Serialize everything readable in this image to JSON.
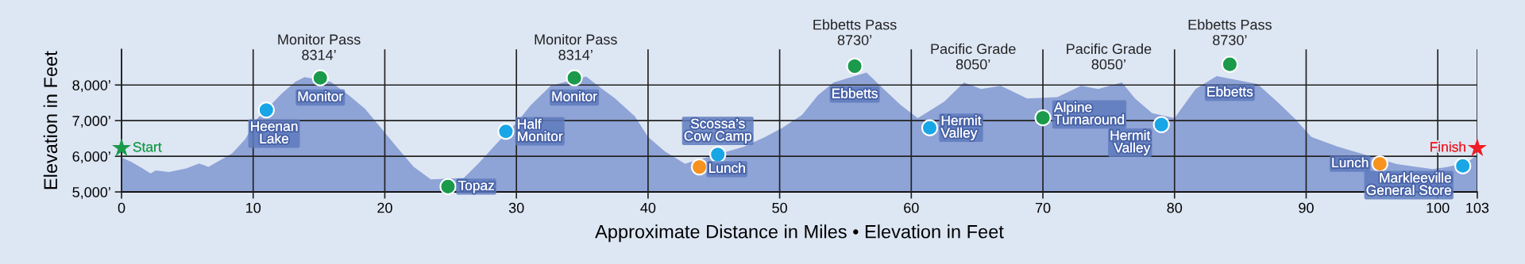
{
  "chart_data": {
    "type": "area",
    "xlabel": "Approximate Distance in Miles • Elevation in Feet",
    "ylabel": "Elevation in Feet",
    "xlim": [
      0,
      103
    ],
    "xticks": [
      0,
      10,
      20,
      30,
      40,
      50,
      60,
      70,
      80,
      90,
      100,
      103
    ],
    "ylim": [
      5000,
      9000
    ],
    "yticks": [
      {
        "value": 5000,
        "label": "5,000’"
      },
      {
        "value": 6000,
        "label": "6,000’"
      },
      {
        "value": 7000,
        "label": "7,000’"
      },
      {
        "value": 8000,
        "label": "8,000’"
      }
    ],
    "grid": true,
    "legend": false,
    "annotations": [
      {
        "text": "Monitor Pass\n8314’",
        "x": 15,
        "y": 8314
      },
      {
        "text": "Monitor Pass\n8314’",
        "x": 34.5,
        "y": 8314
      },
      {
        "text": "Ebbetts Pass\n8730’",
        "x": 55.7,
        "y": 8730
      },
      {
        "text": "Pacific Grade\n8050’",
        "x": 64.7,
        "y": 8050
      },
      {
        "text": "Pacific Grade\n8050’",
        "x": 75,
        "y": 8050
      },
      {
        "text": "Ebbetts Pass\n8730’",
        "x": 84.2,
        "y": 8730
      }
    ],
    "series": [
      {
        "color": "#8ea3d6",
        "x": [
          0,
          0.8,
          1.6,
          2.2,
          2.6,
          3.6,
          4.9,
          5.9,
          6.6,
          7.4,
          8.4,
          9.4,
          10.2,
          12.2,
          13.2,
          13.9,
          15.9,
          17.2,
          18.5,
          19.7,
          21.0,
          22.2,
          23.5,
          26.0,
          27.2,
          28.5,
          30,
          31.1,
          32.6,
          35.3,
          36.2,
          37.5,
          39.0,
          40,
          41.3,
          42.8,
          47.3,
          48.9,
          50.2,
          51.7,
          52.9,
          54.1,
          56.6,
          57.9,
          59.2,
          60.5,
          62.5,
          64.0,
          65.3,
          66.8,
          68.8,
          71.1,
          72.9,
          74.2,
          76.0,
          77.0,
          78.3,
          80,
          81.6,
          83.2,
          86.3,
          87.8,
          89.1,
          90.4,
          92.4,
          94.5,
          96.9,
          99.6,
          100.6,
          102.2,
          103
        ],
        "values": [
          5970,
          5830,
          5660,
          5520,
          5600,
          5560,
          5660,
          5800,
          5700,
          5870,
          6080,
          6480,
          7010,
          7770,
          8090,
          8220,
          8090,
          7730,
          7330,
          6800,
          6220,
          5700,
          5350,
          5390,
          5830,
          6360,
          6940,
          7440,
          7980,
          8240,
          7980,
          7620,
          7120,
          6540,
          6130,
          5790,
          6270,
          6540,
          6800,
          7160,
          7710,
          8070,
          8350,
          7890,
          7440,
          7070,
          7530,
          8070,
          7890,
          7980,
          7620,
          7660,
          7980,
          7890,
          8070,
          7620,
          7210,
          7070,
          7890,
          8250,
          8030,
          7530,
          7070,
          6540,
          6270,
          6040,
          5780,
          5640,
          5690,
          5820,
          6040
        ]
      },
      {
        "type": "scatter",
        "marker": "circle",
        "x": [
          11,
          15.1,
          24.8,
          29.2,
          34.4,
          43.9,
          45.3,
          55.7,
          61.4,
          70,
          79,
          84.2,
          95.6,
          101.9
        ],
        "values": [
          7300,
          8200,
          5150,
          6700,
          8200,
          5700,
          6050,
          8530,
          6800,
          7080,
          6890,
          8580,
          5790,
          5730
        ],
        "colors": [
          "#19a6e6",
          "#1a9a4a",
          "#1a9a4a",
          "#19a6e6",
          "#1a9a4a",
          "#f7931e",
          "#19a6e6",
          "#1a9a4a",
          "#19a6e6",
          "#1a9a4a",
          "#19a6e6",
          "#1a9a4a",
          "#f7931e",
          "#19a6e6"
        ],
        "value_labels": [
          "Heenan\nLake",
          "Monitor",
          "Topaz",
          "Half\nMonitor",
          "Monitor",
          "Lunch",
          "Scossa’s\nCow Camp",
          "Ebbetts",
          "Hermit\nValley",
          "Alpine\nTurnaround",
          "Hermit\nValley",
          "Ebbetts",
          "Lunch",
          "Markleeville\nGeneral Store"
        ]
      },
      {
        "type": "scatter",
        "marker": "star",
        "x": [
          0,
          103
        ],
        "values": [
          6230,
          6230
        ],
        "colors": [
          "#1a9a4a",
          "#ee1c25"
        ],
        "value_labels": [
          "Start",
          "Finish"
        ]
      }
    ]
  }
}
